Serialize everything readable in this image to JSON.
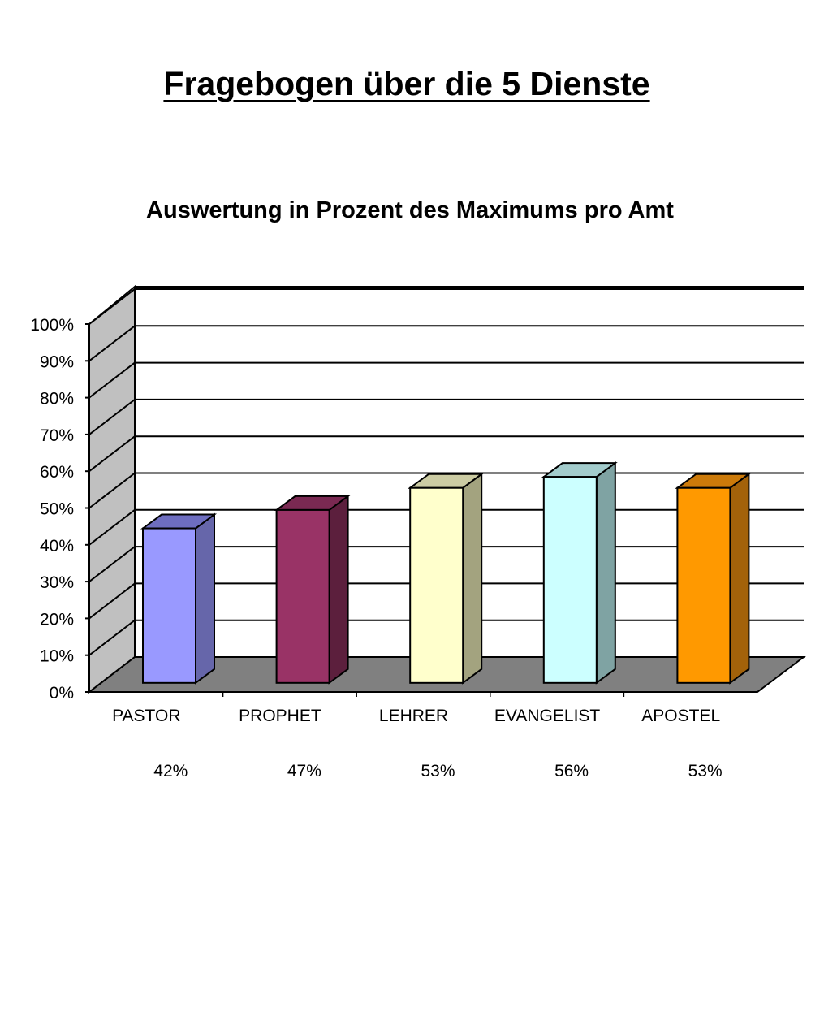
{
  "header": {
    "title": "Fragebogen über die 5 Dienste"
  },
  "chart_data": {
    "type": "bar",
    "title": "Auswertung in Prozent des Maximums pro Amt",
    "xlabel": "",
    "ylabel": "",
    "categories": [
      "PASTOR",
      "PROPHET",
      "LEHRER",
      "EVANGELIST",
      "APOSTEL"
    ],
    "values": [
      42,
      47,
      53,
      56,
      53
    ],
    "value_labels": [
      "42%",
      "47%",
      "53%",
      "56%",
      "53%"
    ],
    "ylim": [
      0,
      100
    ],
    "y_ticks": [
      0,
      10,
      20,
      30,
      40,
      50,
      60,
      70,
      80,
      90,
      100
    ],
    "y_tick_labels": [
      "0%",
      "10%",
      "20%",
      "30%",
      "40%",
      "50%",
      "60%",
      "70%",
      "80%",
      "90%",
      "100%"
    ],
    "grid": true,
    "style": "3d",
    "colors": {
      "front": [
        "#9999FF",
        "#993366",
        "#FFFFCC",
        "#CCFFFF",
        "#FF9900"
      ],
      "side": [
        "#6666AA",
        "#5C1F3D",
        "#A3A37F",
        "#7FA3A3",
        "#A3620A"
      ],
      "top": [
        "#6E6EC0",
        "#7A2952",
        "#CCCCA3",
        "#A3CCCC",
        "#CC7A0A"
      ],
      "wall": "#C0C0C0",
      "floor": "#808080",
      "grid": "#000000"
    }
  }
}
